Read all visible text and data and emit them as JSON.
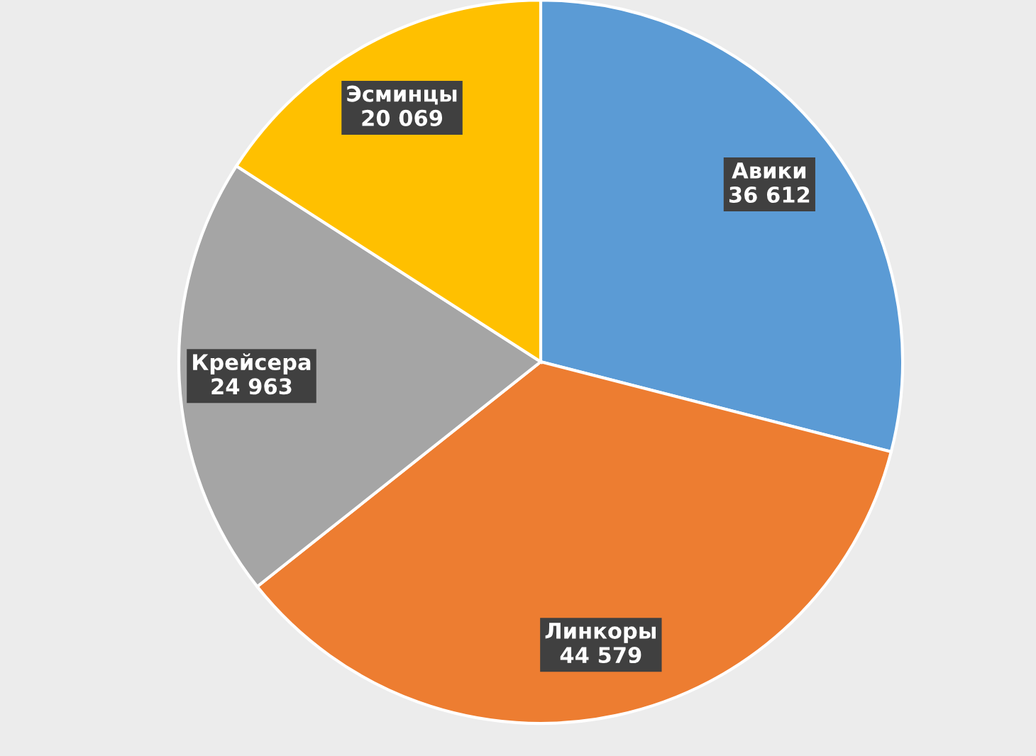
{
  "chart_data": {
    "type": "pie",
    "categories": [
      "Авики",
      "Линкоры",
      "Крейсера",
      "Эсминцы"
    ],
    "values": [
      36612,
      44579,
      24963,
      20069
    ],
    "value_labels": [
      "36 612",
      "44 579",
      "24 963",
      "20 069"
    ],
    "colors": [
      "#5b9bd5",
      "#ed7d31",
      "#a5a5a5",
      "#ffc000"
    ],
    "legend": false
  }
}
